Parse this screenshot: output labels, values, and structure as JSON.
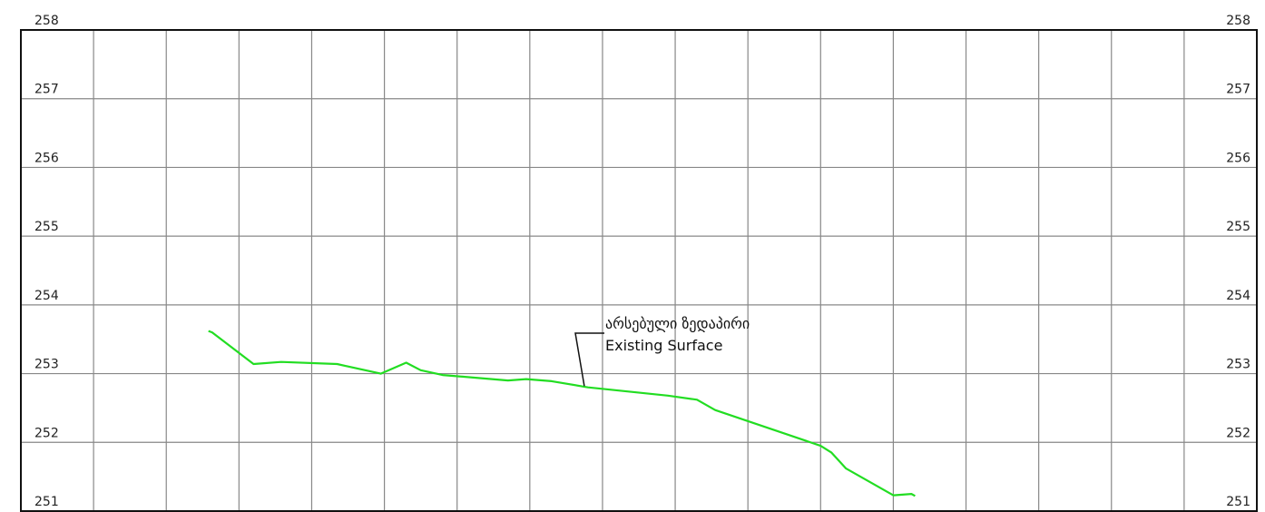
{
  "chart_data": {
    "type": "line",
    "ylim": [
      251,
      258
    ],
    "y_ticks_left": [
      "258",
      "257",
      "256",
      "255",
      "254",
      "253",
      "252",
      "251"
    ],
    "y_ticks_right": [
      "258",
      "257",
      "256",
      "255",
      "254",
      "253",
      "252",
      "251"
    ],
    "vertical_grid_columns": 17,
    "grid": true,
    "series": [
      {
        "color": "#22dd22",
        "points": [
          [
            2.58,
            253.62
          ],
          [
            2.63,
            253.6
          ],
          [
            3.2,
            253.14
          ],
          [
            3.58,
            253.17
          ],
          [
            4.35,
            253.14
          ],
          [
            4.95,
            253.0
          ],
          [
            5.3,
            253.16
          ],
          [
            5.5,
            253.05
          ],
          [
            5.8,
            252.98
          ],
          [
            6.7,
            252.9
          ],
          [
            6.95,
            252.92
          ],
          [
            7.3,
            252.89
          ],
          [
            7.8,
            252.8
          ],
          [
            8.9,
            252.68
          ],
          [
            9.3,
            252.62
          ],
          [
            9.55,
            252.47
          ],
          [
            10.5,
            252.13
          ],
          [
            11.0,
            251.95
          ],
          [
            11.15,
            251.85
          ],
          [
            11.35,
            251.62
          ],
          [
            12.0,
            251.23
          ],
          [
            12.25,
            251.25
          ],
          [
            12.3,
            251.22
          ]
        ]
      }
    ],
    "annotation": {
      "line1": "არსებული ზედაპირი",
      "line2": "Existing Surface",
      "target": [
        7.75,
        252.82
      ]
    }
  }
}
